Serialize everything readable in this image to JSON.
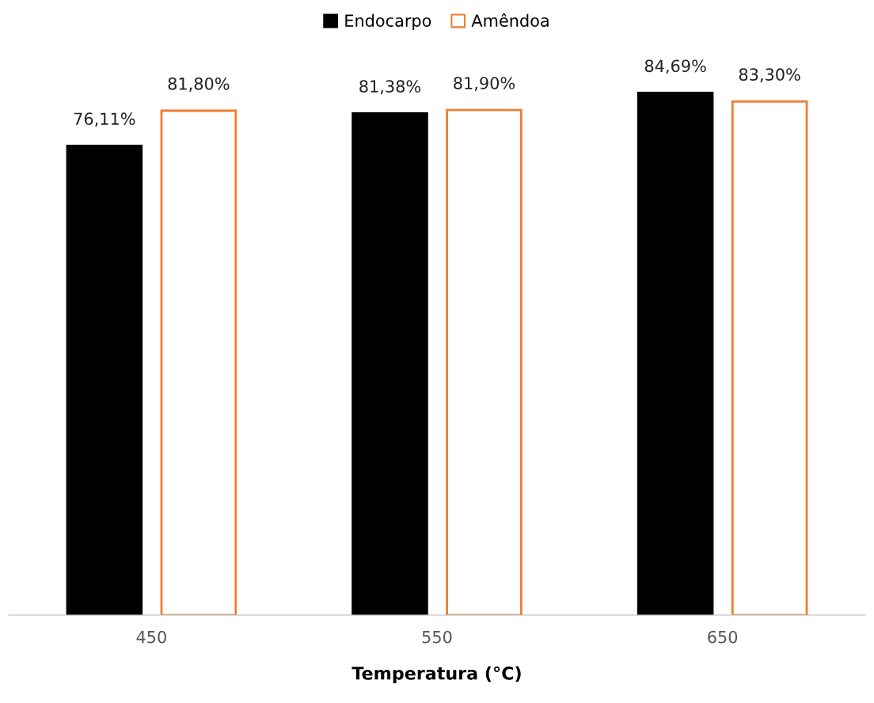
{
  "chart_data": {
    "type": "bar",
    "xlabel": "Temperatura (°C)",
    "categories": [
      "450",
      "550",
      "650"
    ],
    "series": [
      {
        "name": "Endocarpo",
        "color": "#000000",
        "values": [
          76.11,
          81.38,
          84.69
        ],
        "value_labels": [
          "76,11%",
          "81,38%",
          "84,69%"
        ]
      },
      {
        "name": "Amêndoa",
        "color": "#ed7d31",
        "values": [
          81.8,
          81.9,
          83.3
        ],
        "value_labels": [
          "81,80%",
          "81,90%",
          "83,30%"
        ]
      }
    ],
    "tick_labels": "x",
    "grid": false,
    "legend": "top"
  }
}
